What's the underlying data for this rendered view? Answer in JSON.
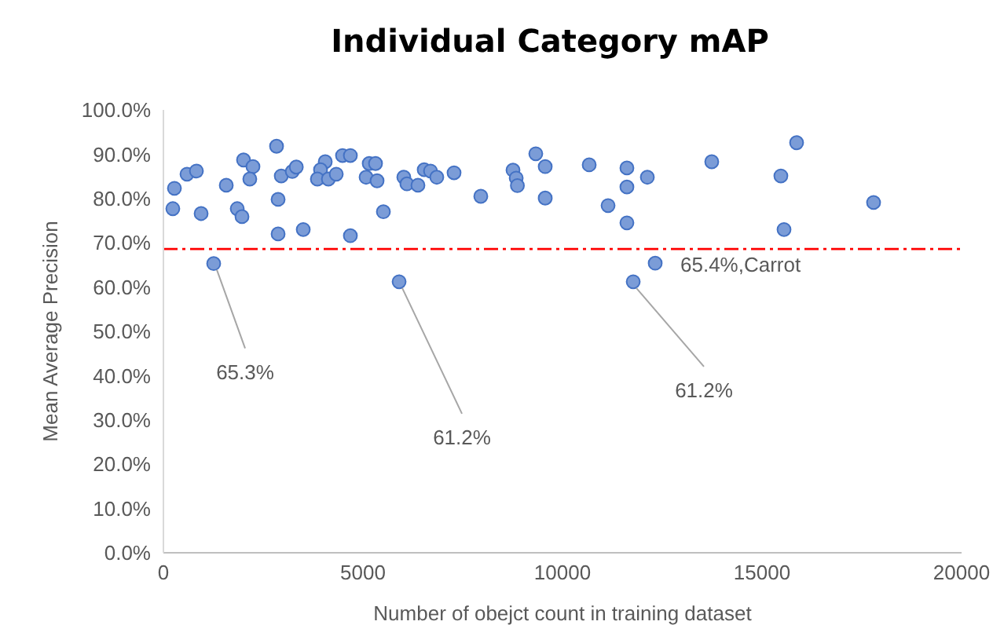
{
  "chart_data": {
    "type": "scatter",
    "title": "Individual Category mAP",
    "xlabel": "Number of obejct count in training dataset",
    "ylabel": "Mean Average Precision",
    "x": [
      276,
      236,
      591,
      827,
      945,
      1575,
      2008,
      2244,
      2165,
      1850,
      1969,
      2835,
      2953,
      2874,
      2874,
      3230,
      3330,
      3504,
      4055,
      3937,
      3858,
      4134,
      4331,
      4488,
      4685,
      4685,
      5157,
      5315,
      5079,
      5354,
      5512,
      6024,
      6102,
      6378,
      6535,
      6693,
      6850,
      7283,
      7953,
      8760,
      8840,
      8870,
      9331,
      9567,
      9567,
      10669,
      11142,
      11614,
      11614,
      11614,
      12126,
      13740,
      15866,
      15472,
      17795,
      15551,
      1260,
      5906,
      12323,
      11772
    ],
    "series": [
      {
        "color": "#7b9cd7",
        "values": [
          82.3,
          77.7,
          85.5,
          86.2,
          76.6,
          83.0,
          88.7,
          87.2,
          84.4,
          77.7,
          75.9,
          91.8,
          85.1,
          79.8,
          72.0,
          86.1,
          87.1,
          73.0,
          88.3,
          86.5,
          84.4,
          84.4,
          85.5,
          89.7,
          89.7,
          71.6,
          87.9,
          87.9,
          84.8,
          84.0,
          77.0,
          84.8,
          83.3,
          83.0,
          86.5,
          86.2,
          84.8,
          85.8,
          80.5,
          86.4,
          84.6,
          82.9,
          90.1,
          87.2,
          80.1,
          87.6,
          78.4,
          86.9,
          82.6,
          74.5,
          84.8,
          88.3,
          92.6,
          85.1,
          79.1,
          73.0,
          65.3,
          61.2,
          65.4,
          61.2
        ]
      }
    ],
    "xlim": [
      0,
      20000
    ],
    "xticks": [
      0,
      5000,
      10000,
      15000,
      20000
    ],
    "ylim": [
      0,
      100
    ],
    "yticks": [
      {
        "value": 0,
        "label": "0.0%"
      },
      {
        "value": 10,
        "label": "10.0%"
      },
      {
        "value": 20,
        "label": "20.0%"
      },
      {
        "value": 30,
        "label": "30.0%"
      },
      {
        "value": 40,
        "label": "40.0%"
      },
      {
        "value": 50,
        "label": "50.0%"
      },
      {
        "value": 60,
        "label": "60.0%"
      },
      {
        "value": 70,
        "label": "70.0%"
      },
      {
        "value": 80,
        "label": "80.0%"
      },
      {
        "value": 90,
        "label": "90.0%"
      },
      {
        "value": 100,
        "label": "100.0%"
      }
    ],
    "ref_lines": [
      {
        "axis": "y",
        "value": 68.6,
        "color": "#ff0000",
        "line_style": "dashed"
      }
    ],
    "annotations": [
      {
        "text": "65.3%",
        "x": 1260,
        "y": 65.3
      },
      {
        "text": "61.2%",
        "x": 5906,
        "y": 61.2
      },
      {
        "text": "65.4%,Carrot",
        "x": 12323,
        "y": 65.4
      },
      {
        "text": "61.2%",
        "x": 11772,
        "y": 61.2
      }
    ],
    "marker": "circle",
    "grid": false,
    "legend": false
  }
}
